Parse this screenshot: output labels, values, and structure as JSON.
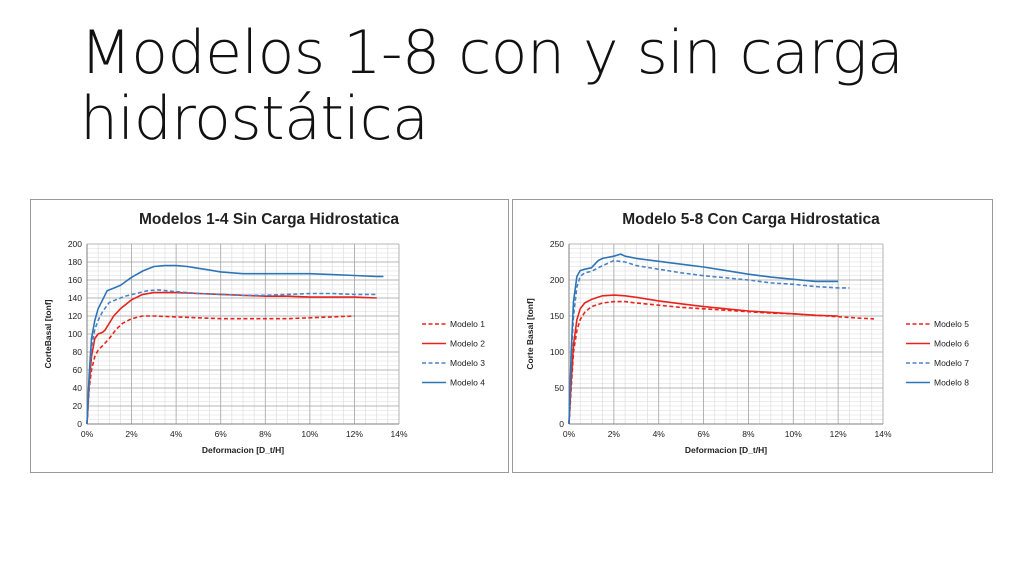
{
  "slide": {
    "title_line1": "Modelos 1-8 con y sin carga",
    "title_line2": "hidrostática"
  },
  "chart_data": [
    {
      "type": "line",
      "title": "Modelos 1-4 Sin Carga Hidrostatica",
      "xlabel": "Deformacion [D_t/H]",
      "ylabel": "CorteBasal [tonf]",
      "xlim": [
        0,
        14
      ],
      "ylim": [
        0,
        200
      ],
      "xticks": [
        0,
        2,
        4,
        6,
        8,
        10,
        12,
        14
      ],
      "xtick_labels": [
        "0%",
        "2%",
        "4%",
        "6%",
        "8%",
        "10%",
        "12%",
        "14%"
      ],
      "yticks": [
        0,
        20,
        40,
        60,
        80,
        100,
        120,
        140,
        160,
        180,
        200
      ],
      "ytick_labels": [
        "0",
        "20",
        "40",
        "60",
        "80",
        "100",
        "120",
        "140",
        "160",
        "180",
        "200"
      ],
      "grid": true,
      "legend_position": "right",
      "series": [
        {
          "name": "Modelo 1",
          "color": "#e8231c",
          "dash": true,
          "x": [
            0,
            0.1,
            0.2,
            0.35,
            0.5,
            0.7,
            1.0,
            1.3,
            1.6,
            2.0,
            2.5,
            3.0,
            4.0,
            5.0,
            6.0,
            7.0,
            8.0,
            9.0,
            10.0,
            11.0,
            12.0
          ],
          "y": [
            0,
            40,
            60,
            75,
            82,
            87,
            95,
            105,
            112,
            117,
            120,
            120,
            119,
            118,
            117,
            117,
            117,
            117,
            118,
            119,
            120
          ]
        },
        {
          "name": "Modelo 2",
          "color": "#e8231c",
          "dash": false,
          "x": [
            0,
            0.1,
            0.2,
            0.35,
            0.5,
            0.7,
            0.8,
            1.0,
            1.2,
            1.5,
            2.0,
            2.5,
            3.0,
            4.0,
            5.0,
            6.0,
            7.0,
            8.0,
            9.0,
            10.0,
            11.0,
            12.0,
            13.0
          ],
          "y": [
            0,
            45,
            75,
            95,
            100,
            102,
            104,
            112,
            120,
            128,
            138,
            144,
            146,
            146,
            145,
            144,
            143,
            142,
            142,
            141,
            141,
            141,
            140
          ]
        },
        {
          "name": "Modelo 3",
          "color": "#4a84c8",
          "dash": true,
          "x": [
            0,
            0.1,
            0.2,
            0.35,
            0.5,
            0.7,
            1.0,
            1.3,
            1.7,
            2.2,
            2.7,
            3.2,
            4.0,
            5.0,
            6.0,
            7.0,
            8.0,
            9.0,
            10.0,
            11.0,
            12.0,
            13.0
          ],
          "y": [
            0,
            50,
            85,
            105,
            115,
            125,
            135,
            138,
            142,
            145,
            148,
            149,
            147,
            145,
            144,
            143,
            143,
            144,
            145,
            145,
            144,
            144
          ]
        },
        {
          "name": "Modelo 4",
          "color": "#2e75b6",
          "dash": false,
          "x": [
            0,
            0.1,
            0.2,
            0.35,
            0.5,
            0.7,
            0.9,
            1.2,
            1.5,
            2.0,
            2.5,
            3.0,
            3.5,
            4.0,
            4.5,
            5.0,
            5.5,
            6.0,
            7.0,
            8.0,
            9.0,
            10.0,
            11.0,
            12.0,
            13.0,
            13.3
          ],
          "y": [
            0,
            55,
            95,
            115,
            128,
            138,
            148,
            151,
            154,
            163,
            170,
            175,
            176,
            176,
            175,
            173,
            171,
            169,
            167,
            167,
            167,
            167,
            166,
            165,
            164,
            164
          ]
        }
      ]
    },
    {
      "type": "line",
      "title": "Modelo 5-8 Con Carga Hidrostatica",
      "xlabel": "Deformacion [D_t/H]",
      "ylabel": "Corte Basal [tonf]",
      "xlim": [
        0,
        14
      ],
      "ylim": [
        0,
        250
      ],
      "xticks": [
        0,
        2,
        4,
        6,
        8,
        10,
        12,
        14
      ],
      "xtick_labels": [
        "0%",
        "2%",
        "4%",
        "6%",
        "8%",
        "10%",
        "12%",
        "14%"
      ],
      "yticks": [
        0,
        50,
        100,
        150,
        200,
        250
      ],
      "ytick_labels": [
        "0",
        "50",
        "100",
        "150",
        "200",
        "250"
      ],
      "grid": true,
      "legend_position": "right",
      "series": [
        {
          "name": "Modelo 5",
          "color": "#e8231c",
          "dash": true,
          "x": [
            0,
            0.1,
            0.2,
            0.35,
            0.5,
            0.7,
            1.0,
            1.5,
            2.0,
            2.5,
            3.0,
            4.0,
            5.0,
            6.0,
            7.0,
            8.0,
            9.0,
            10.0,
            11.0,
            12.0,
            13.0,
            13.6
          ],
          "y": [
            0,
            50,
            100,
            130,
            145,
            155,
            163,
            168,
            170,
            170,
            168,
            165,
            162,
            160,
            158,
            156,
            154,
            153,
            151,
            149,
            147,
            146
          ]
        },
        {
          "name": "Modelo 6",
          "color": "#e8231c",
          "dash": false,
          "x": [
            0,
            0.1,
            0.2,
            0.35,
            0.5,
            0.7,
            1.0,
            1.5,
            2.0,
            2.5,
            3.0,
            4.0,
            5.0,
            6.0,
            7.0,
            8.0,
            9.0,
            10.0,
            11.0,
            12.0
          ],
          "y": [
            0,
            60,
            110,
            145,
            160,
            168,
            173,
            178,
            179,
            178,
            176,
            171,
            167,
            163,
            160,
            157,
            155,
            153,
            151,
            150
          ]
        },
        {
          "name": "Modelo 7",
          "color": "#4a84c8",
          "dash": true,
          "x": [
            0,
            0.1,
            0.2,
            0.35,
            0.5,
            0.7,
            1.0,
            1.5,
            2.0,
            2.5,
            3.0,
            4.0,
            5.0,
            6.0,
            7.0,
            8.0,
            9.0,
            10.0,
            11.0,
            12.0,
            12.5
          ],
          "y": [
            0,
            90,
            150,
            190,
            205,
            210,
            212,
            220,
            227,
            225,
            220,
            215,
            210,
            206,
            203,
            200,
            196,
            194,
            191,
            189,
            189
          ]
        },
        {
          "name": "Modelo 8",
          "color": "#2e75b6",
          "dash": false,
          "x": [
            0,
            0.1,
            0.2,
            0.35,
            0.5,
            0.7,
            1.0,
            1.3,
            1.5,
            2.0,
            2.3,
            2.5,
            3.0,
            4.0,
            5.0,
            6.0,
            7.0,
            8.0,
            9.0,
            10.0,
            11.0,
            12.0
          ],
          "y": [
            0,
            100,
            170,
            205,
            213,
            215,
            217,
            227,
            230,
            233,
            236,
            233,
            230,
            226,
            222,
            218,
            213,
            208,
            204,
            201,
            198,
            198
          ]
        }
      ]
    }
  ]
}
